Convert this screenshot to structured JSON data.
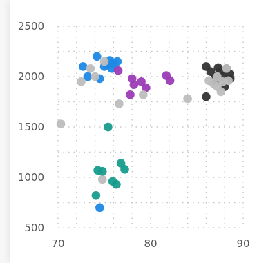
{
  "chart_data": {
    "type": "scatter",
    "title": "",
    "xlabel": "",
    "ylabel": "",
    "xlim": [
      70,
      90
    ],
    "ylim": [
      500,
      2500
    ],
    "x_ticks": [
      70,
      80,
      90
    ],
    "y_ticks": [
      500,
      1000,
      1500,
      2000,
      2500
    ],
    "grid": true,
    "legend": "none",
    "series": [
      {
        "color": "#1e88e5",
        "points": [
          [
            72.7,
            2100
          ],
          [
            73.2,
            2000
          ],
          [
            74.2,
            2200
          ],
          [
            74.5,
            1980
          ],
          [
            75.0,
            2100
          ],
          [
            75.3,
            2120
          ],
          [
            75.6,
            2160
          ],
          [
            75.8,
            2080
          ],
          [
            76.0,
            2130
          ],
          [
            76.4,
            2150
          ],
          [
            74.5,
            700
          ]
        ]
      },
      {
        "color": "#9c3cb6",
        "points": [
          [
            76.5,
            2060
          ],
          [
            77.8,
            1820
          ],
          [
            78.0,
            1980
          ],
          [
            78.2,
            1920
          ],
          [
            79.0,
            1950
          ],
          [
            79.5,
            1890
          ],
          [
            81.7,
            2010
          ],
          [
            82.1,
            1960
          ]
        ]
      },
      {
        "color": "#333333",
        "points": [
          [
            86.0,
            2100
          ],
          [
            86.0,
            1800
          ],
          [
            86.5,
            2050
          ],
          [
            87.0,
            2000
          ],
          [
            87.3,
            2090
          ],
          [
            87.5,
            2050
          ],
          [
            87.8,
            2000
          ],
          [
            88.2,
            2080
          ],
          [
            88.5,
            2030
          ],
          [
            88.6,
            1980
          ],
          [
            88.0,
            1900
          ],
          [
            87.0,
            1950
          ]
        ]
      },
      {
        "color": "#bdbdbd",
        "points": [
          [
            70.3,
            1530
          ],
          [
            72.5,
            1950
          ],
          [
            73.5,
            2080
          ],
          [
            74.0,
            2000
          ],
          [
            75.0,
            2150
          ],
          [
            74.8,
            980
          ],
          [
            76.6,
            1730
          ],
          [
            79.2,
            1820
          ],
          [
            84.0,
            1780
          ],
          [
            86.3,
            1960
          ],
          [
            86.8,
            1930
          ],
          [
            87.2,
            2000
          ],
          [
            87.6,
            1850
          ],
          [
            87.8,
            1950
          ],
          [
            88.2,
            2080
          ],
          [
            88.4,
            1960
          ],
          [
            87.2,
            1900
          ]
        ]
      },
      {
        "color": "#179c8c",
        "points": [
          [
            75.4,
            1500
          ],
          [
            74.3,
            1070
          ],
          [
            74.8,
            1060
          ],
          [
            76.8,
            1140
          ],
          [
            77.2,
            1080
          ],
          [
            75.9,
            960
          ],
          [
            76.3,
            930
          ],
          [
            74.1,
            820
          ]
        ]
      }
    ]
  }
}
